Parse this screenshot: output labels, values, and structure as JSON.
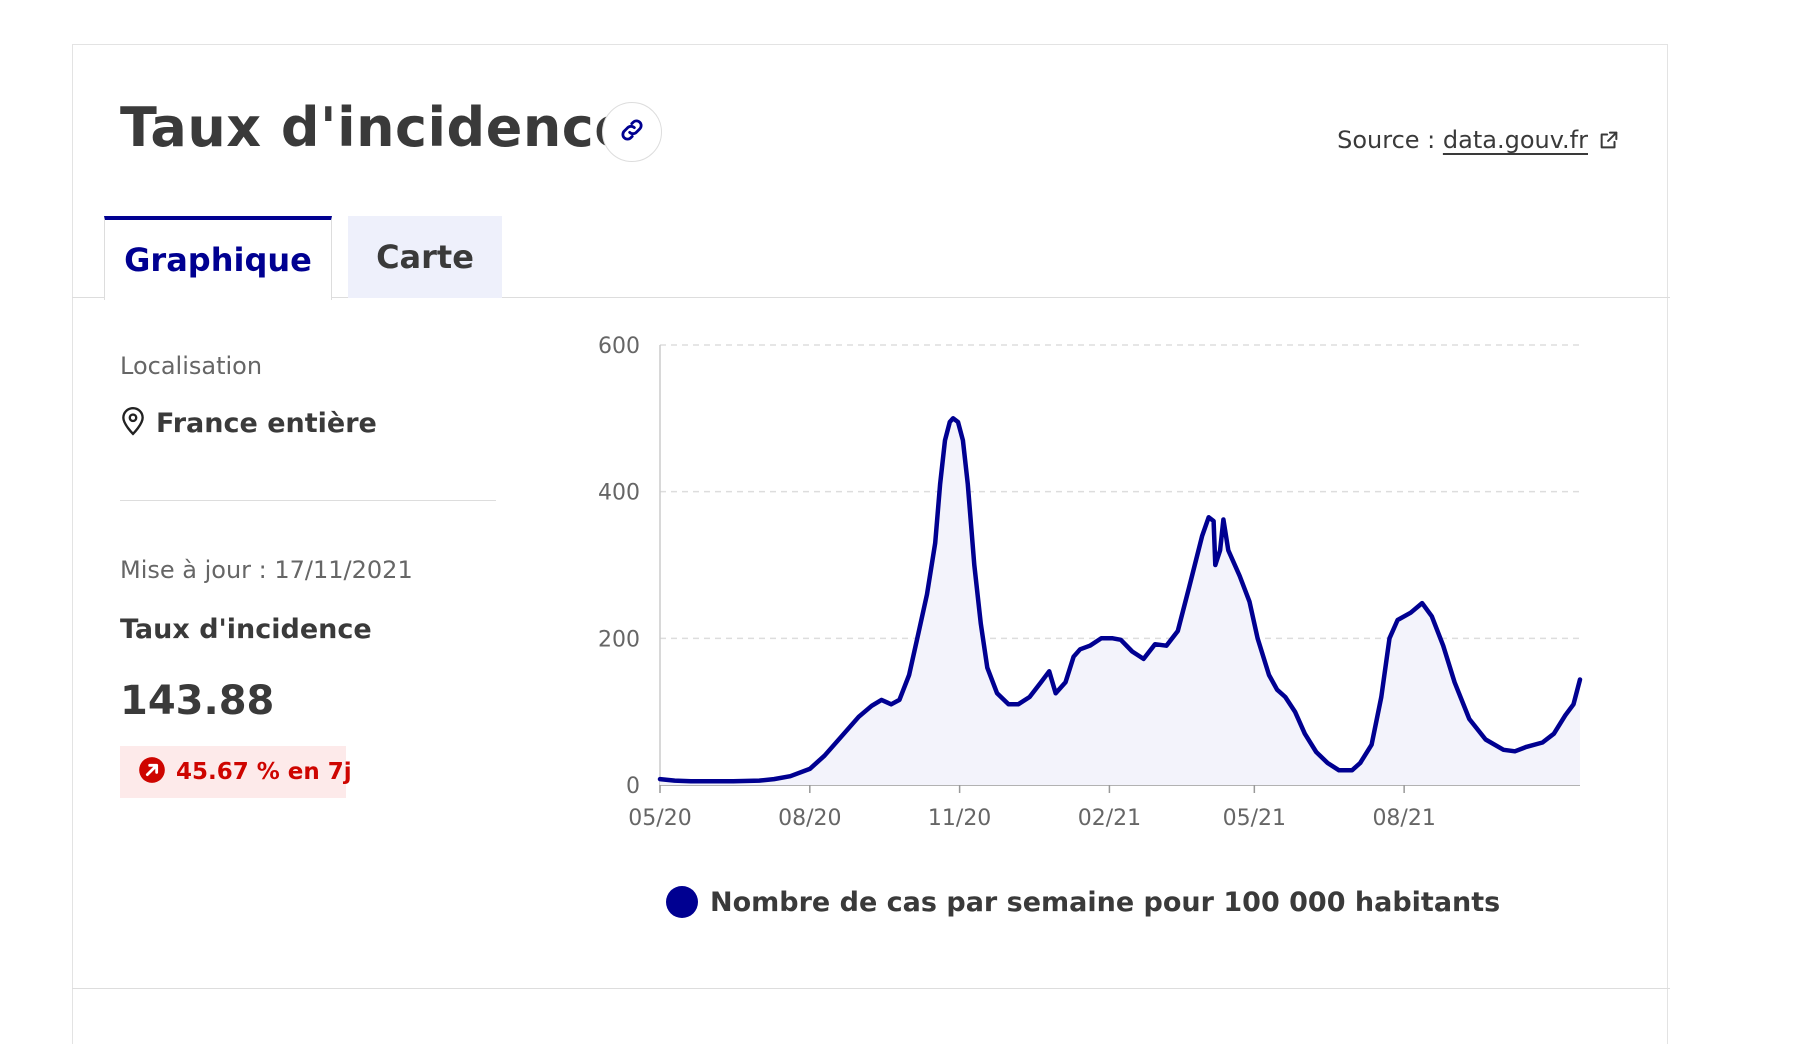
{
  "header": {
    "title": "Taux d'incidence",
    "source_prefix": "Source :",
    "source_link": "data.gouv.fr"
  },
  "tabs": [
    {
      "label": "Graphique",
      "active": true
    },
    {
      "label": "Carte",
      "active": false
    }
  ],
  "sidebar": {
    "location_label": "Localisation",
    "location_value": "France entière",
    "update_text": "Mise à jour : 17/11/2021",
    "metric_label": "Taux d'incidence",
    "metric_value": "143.88",
    "change_text": "45.67 % en 7j"
  },
  "colors": {
    "accent": "#000091",
    "area_fill": "#f3f3fb",
    "grid": "#dddddd",
    "negative": "#ce0500",
    "tab_inactive_bg": "#eef0fb"
  },
  "icons": {
    "link": "link-icon",
    "external": "external-link-icon",
    "location": "location-pin-icon",
    "trend": "arrow-up-right-icon"
  },
  "chart_data": {
    "type": "area",
    "x_tick_labels": [
      "05/20",
      "08/20",
      "11/20",
      "02/21",
      "05/21",
      "08/21"
    ],
    "x_tick_positions": [
      "2020-05-01",
      "2020-08-01",
      "2020-11-01",
      "2021-02-01",
      "2021-05-01",
      "2021-08-01"
    ],
    "x_range": [
      "2020-05-01",
      "2021-11-17"
    ],
    "ylim": [
      0,
      600
    ],
    "y_ticks": [
      0,
      200,
      400,
      600
    ],
    "grid": "horizontal dashed",
    "legend_position": "bottom",
    "series": [
      {
        "name": "Nombre de cas par semaine pour 100 000 habitants",
        "color": "#000091",
        "points": [
          [
            "2020-05-01",
            8
          ],
          [
            "2020-05-10",
            6
          ],
          [
            "2020-05-20",
            5
          ],
          [
            "2020-06-01",
            5
          ],
          [
            "2020-06-15",
            5
          ],
          [
            "2020-07-01",
            6
          ],
          [
            "2020-07-10",
            8
          ],
          [
            "2020-07-20",
            12
          ],
          [
            "2020-08-01",
            22
          ],
          [
            "2020-08-10",
            40
          ],
          [
            "2020-08-20",
            65
          ],
          [
            "2020-08-31",
            93
          ],
          [
            "2020-09-08",
            108
          ],
          [
            "2020-09-14",
            116
          ],
          [
            "2020-09-20",
            110
          ],
          [
            "2020-09-25",
            116
          ],
          [
            "2020-10-01",
            150
          ],
          [
            "2020-10-06",
            200
          ],
          [
            "2020-10-12",
            260
          ],
          [
            "2020-10-17",
            330
          ],
          [
            "2020-10-20",
            410
          ],
          [
            "2020-10-23",
            470
          ],
          [
            "2020-10-26",
            495
          ],
          [
            "2020-10-28",
            500
          ],
          [
            "2020-10-31",
            495
          ],
          [
            "2020-11-03",
            470
          ],
          [
            "2020-11-06",
            410
          ],
          [
            "2020-11-10",
            300
          ],
          [
            "2020-11-14",
            220
          ],
          [
            "2020-11-18",
            160
          ],
          [
            "2020-11-24",
            125
          ],
          [
            "2020-12-01",
            110
          ],
          [
            "2020-12-07",
            110
          ],
          [
            "2020-12-14",
            120
          ],
          [
            "2020-12-21",
            140
          ],
          [
            "2020-12-26",
            155
          ],
          [
            "2020-12-30",
            125
          ],
          [
            "2021-01-05",
            140
          ],
          [
            "2021-01-10",
            175
          ],
          [
            "2021-01-14",
            185
          ],
          [
            "2021-01-20",
            190
          ],
          [
            "2021-01-27",
            200
          ],
          [
            "2021-02-03",
            200
          ],
          [
            "2021-02-08",
            198
          ],
          [
            "2021-02-15",
            182
          ],
          [
            "2021-02-22",
            172
          ],
          [
            "2021-03-01",
            192
          ],
          [
            "2021-03-08",
            190
          ],
          [
            "2021-03-15",
            210
          ],
          [
            "2021-03-22",
            270
          ],
          [
            "2021-03-30",
            340
          ],
          [
            "2021-04-03",
            365
          ],
          [
            "2021-04-06",
            360
          ],
          [
            "2021-04-07",
            300
          ],
          [
            "2021-04-10",
            320
          ],
          [
            "2021-04-12",
            362
          ],
          [
            "2021-04-15",
            320
          ],
          [
            "2021-04-22",
            285
          ],
          [
            "2021-04-28",
            250
          ],
          [
            "2021-05-03",
            200
          ],
          [
            "2021-05-10",
            150
          ],
          [
            "2021-05-15",
            130
          ],
          [
            "2021-05-20",
            120
          ],
          [
            "2021-05-26",
            100
          ],
          [
            "2021-06-01",
            70
          ],
          [
            "2021-06-08",
            45
          ],
          [
            "2021-06-15",
            30
          ],
          [
            "2021-06-22",
            20
          ],
          [
            "2021-06-30",
            20
          ],
          [
            "2021-07-05",
            30
          ],
          [
            "2021-07-12",
            55
          ],
          [
            "2021-07-18",
            120
          ],
          [
            "2021-07-23",
            200
          ],
          [
            "2021-07-28",
            225
          ],
          [
            "2021-08-05",
            235
          ],
          [
            "2021-08-12",
            248
          ],
          [
            "2021-08-18",
            230
          ],
          [
            "2021-08-25",
            190
          ],
          [
            "2021-09-01",
            140
          ],
          [
            "2021-09-10",
            90
          ],
          [
            "2021-09-20",
            62
          ],
          [
            "2021-10-01",
            48
          ],
          [
            "2021-10-08",
            46
          ],
          [
            "2021-10-15",
            52
          ],
          [
            "2021-10-25",
            58
          ],
          [
            "2021-11-01",
            70
          ],
          [
            "2021-11-08",
            95
          ],
          [
            "2021-11-13",
            110
          ],
          [
            "2021-11-17",
            143.88
          ]
        ]
      }
    ]
  }
}
